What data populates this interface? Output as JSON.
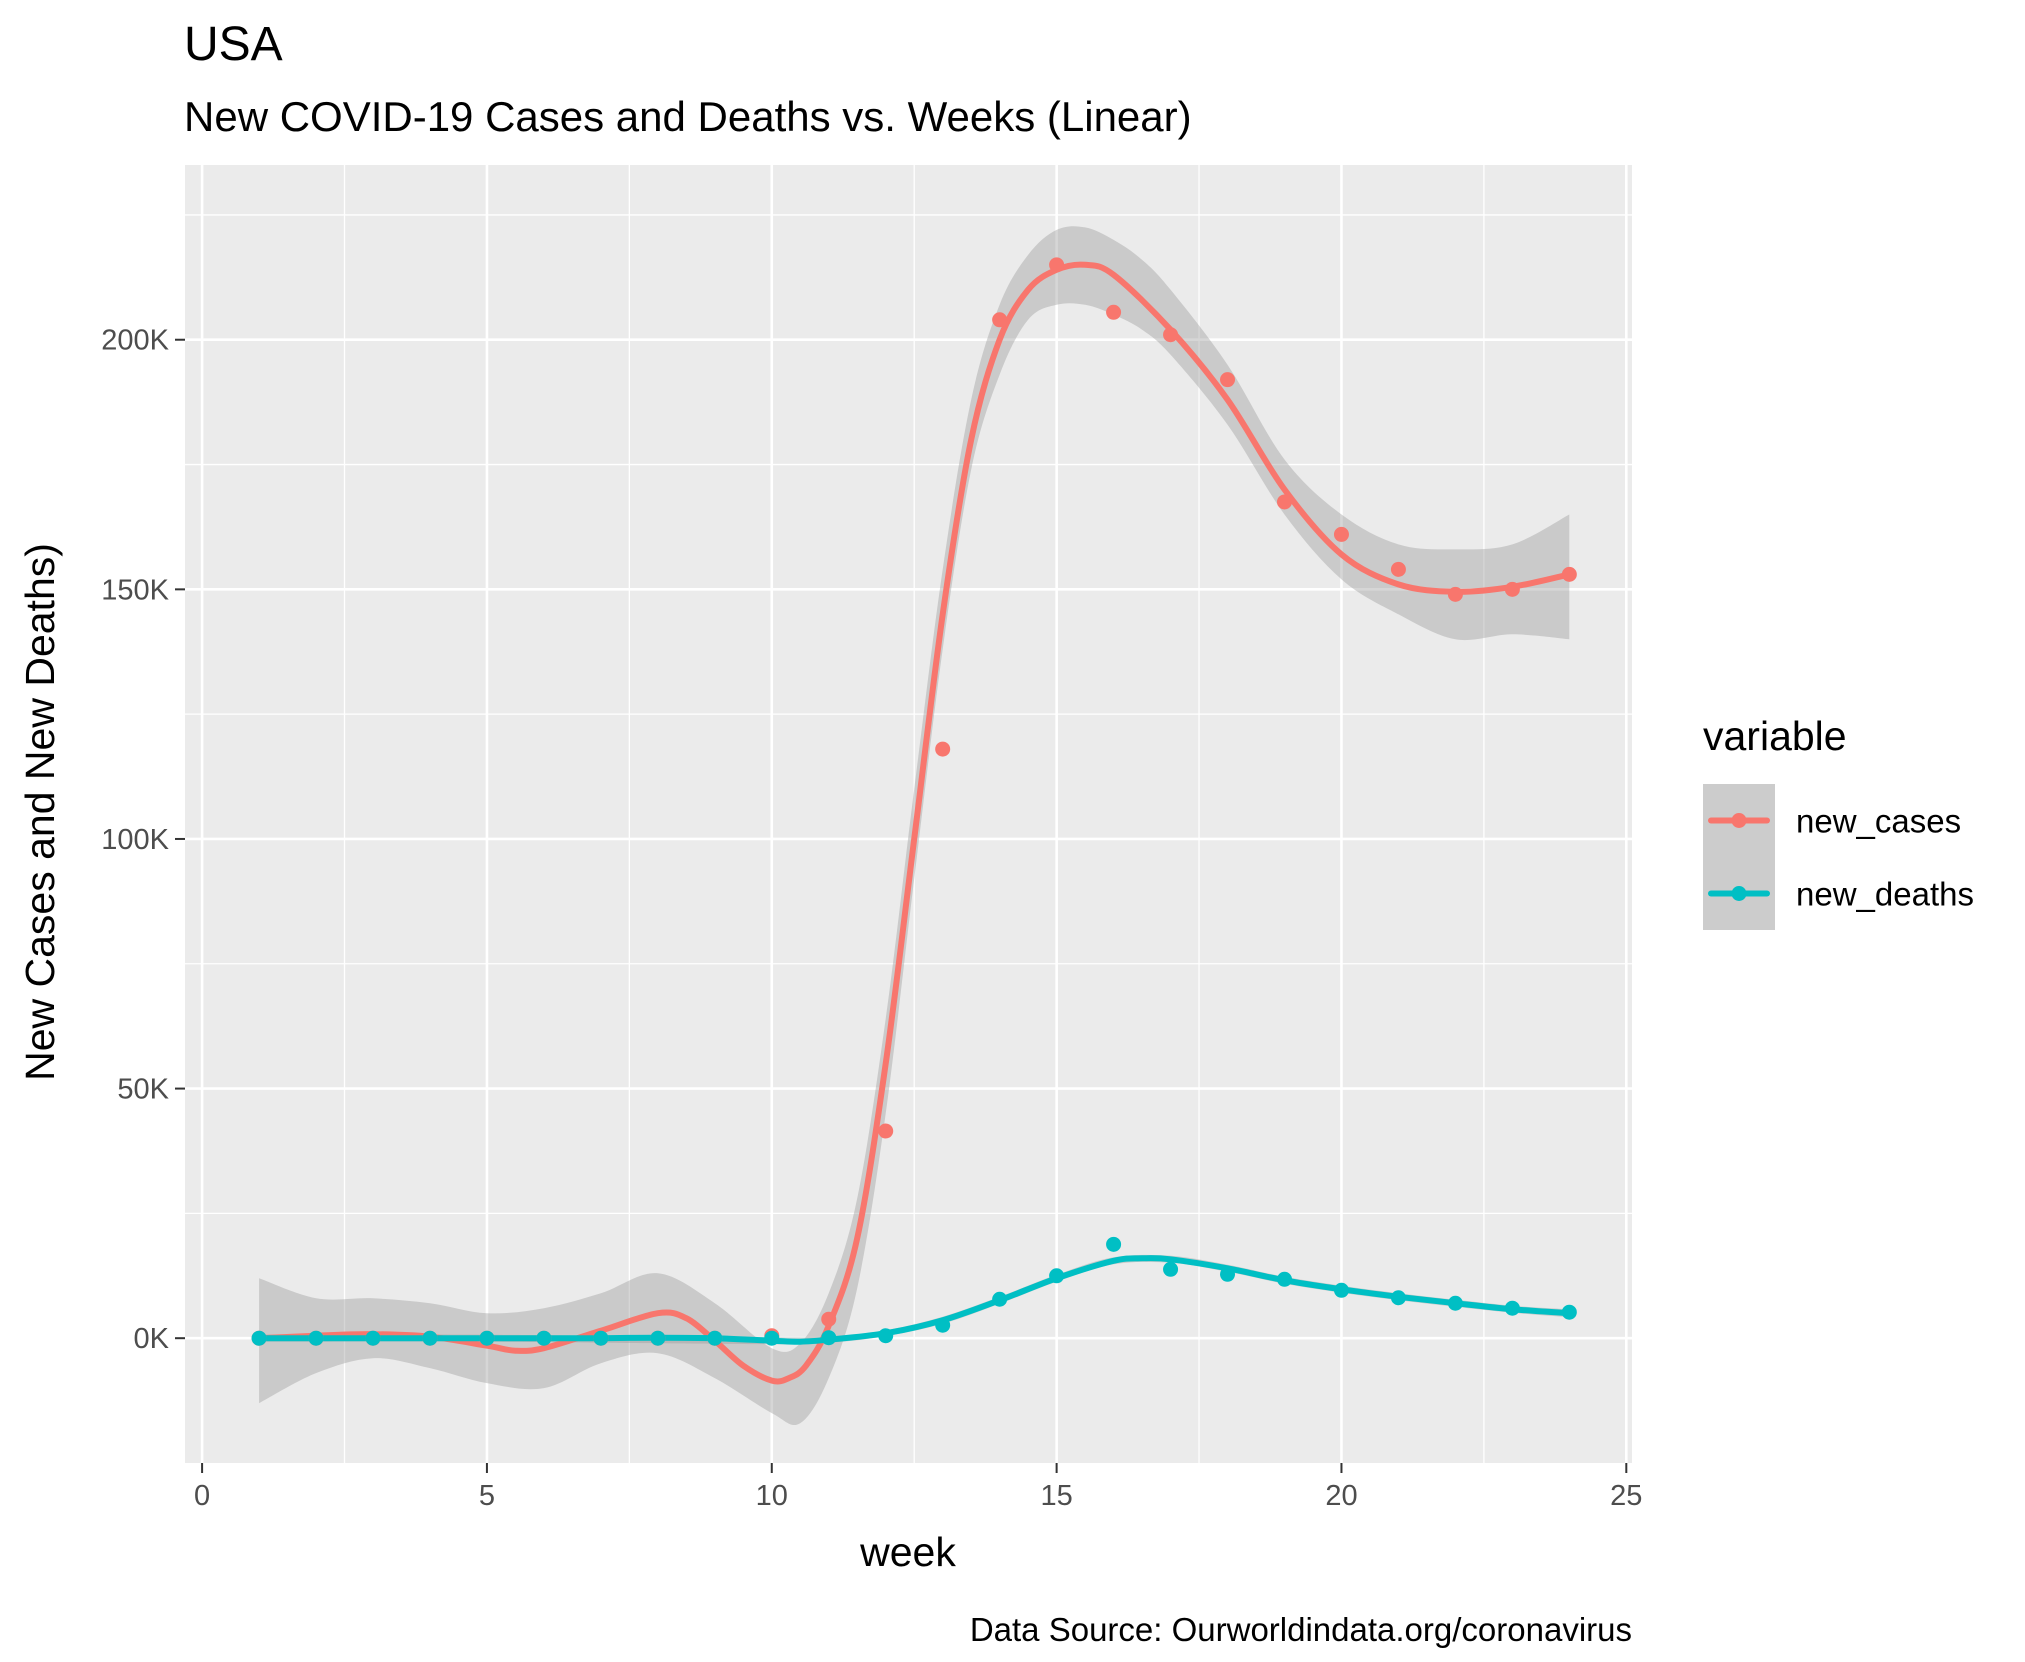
{
  "chart_data": {
    "type": "line",
    "title": "USA",
    "subtitle": "New COVID-19 Cases and Deaths vs. Weeks (Linear)",
    "xlabel": "week",
    "ylabel": "New Cases and New Deaths)",
    "caption": "Data Source: Ourworldindata.org/coronavirus",
    "xlim": [
      -0.3,
      25.1
    ],
    "ylim": [
      -25000,
      235000
    ],
    "x_ticks": [
      0,
      5,
      10,
      15,
      20,
      25
    ],
    "x_tick_labels": [
      "0",
      "5",
      "10",
      "15",
      "20",
      "25"
    ],
    "y_ticks": [
      0,
      50000,
      100000,
      150000,
      200000
    ],
    "y_tick_labels": [
      "0K",
      "50K",
      "100K",
      "150K",
      "200K"
    ],
    "grid": true,
    "legend": {
      "title": "variable",
      "position": "right"
    },
    "series": [
      {
        "name": "new_cases",
        "color": "#F8766D",
        "points": {
          "x": [
            1,
            2,
            3,
            4,
            5,
            6,
            7,
            8,
            9,
            10,
            11,
            12,
            13,
            14,
            15,
            16,
            17,
            18,
            19,
            20,
            21,
            22,
            23,
            24
          ],
          "y": [
            0,
            0,
            0,
            0,
            0,
            0,
            0,
            0,
            0,
            500,
            3800,
            41500,
            118000,
            204000,
            215000,
            205500,
            201000,
            192000,
            167500,
            161000,
            154000,
            149000,
            150000,
            153000
          ]
        },
        "smooth": {
          "x": [
            1,
            2,
            3,
            4,
            5,
            5.5,
            6,
            7,
            8,
            8.5,
            9,
            9.5,
            10,
            10.3,
            10.6,
            11,
            11.5,
            12,
            12.5,
            13,
            13.5,
            14,
            14.5,
            15,
            15.5,
            16,
            17,
            18,
            19,
            20,
            21,
            22,
            23,
            24
          ],
          "y": [
            0,
            500,
            800,
            300,
            -1500,
            -2500,
            -2000,
            1500,
            5000,
            4000,
            -500,
            -5500,
            -8500,
            -8000,
            -5500,
            2500,
            20000,
            55000,
            100000,
            145000,
            180000,
            200000,
            210000,
            214000,
            215000,
            213000,
            202000,
            188000,
            170000,
            157000,
            151000,
            149500,
            150500,
            153000
          ]
        },
        "band": {
          "x": [
            1,
            2,
            3,
            4,
            5,
            6,
            7,
            8,
            9,
            10,
            10.5,
            11,
            11.5,
            12,
            12.5,
            13,
            13.5,
            14,
            14.5,
            15,
            15.5,
            16,
            16.5,
            17,
            18,
            19,
            20,
            21,
            22,
            23,
            24
          ],
          "lower": [
            -13000,
            -7000,
            -4000,
            -6000,
            -9000,
            -10000,
            -5000,
            -3000,
            -8000,
            -15000,
            -17000,
            -8000,
            10000,
            45000,
            92000,
            138000,
            174000,
            193000,
            204000,
            207000,
            207000,
            205000,
            202000,
            197000,
            183000,
            165000,
            152000,
            145000,
            140000,
            141000,
            140000
          ],
          "upper": [
            12000,
            8000,
            8000,
            7000,
            5000,
            6000,
            9000,
            13000,
            7000,
            -2000,
            -1000,
            9000,
            28000,
            64000,
            110000,
            154000,
            188000,
            207000,
            217000,
            222000,
            222500,
            220000,
            216000,
            210000,
            195000,
            176000,
            165000,
            159000,
            158000,
            159000,
            165000
          ]
        }
      },
      {
        "name": "new_deaths",
        "color": "#00BFC4",
        "points": {
          "x": [
            1,
            2,
            3,
            4,
            5,
            6,
            7,
            8,
            9,
            10,
            11,
            12,
            13,
            14,
            15,
            16,
            17,
            18,
            19,
            20,
            21,
            22,
            23,
            24
          ],
          "y": [
            0,
            0,
            0,
            0,
            0,
            0,
            0,
            0,
            0,
            0,
            100,
            500,
            2600,
            7800,
            12500,
            18800,
            13800,
            12800,
            11800,
            9600,
            8100,
            7000,
            6000,
            5200
          ]
        },
        "smooth": {
          "x": [
            1,
            2,
            3,
            4,
            5,
            6,
            7,
            8,
            9,
            10,
            10.5,
            11,
            12,
            13,
            14,
            15,
            16,
            16.5,
            17,
            18,
            19,
            20,
            21,
            22,
            23,
            24
          ],
          "y": [
            0,
            0,
            0,
            0,
            0,
            0,
            0,
            100,
            0,
            -500,
            -700,
            -300,
            1000,
            3600,
            7600,
            12000,
            15500,
            16000,
            15800,
            14000,
            11600,
            9800,
            8300,
            7000,
            5800,
            5000
          ]
        },
        "band": {
          "x": [
            1,
            5,
            10,
            11,
            12,
            13,
            14,
            15,
            16,
            17,
            18,
            19,
            20,
            21,
            22,
            23,
            24
          ],
          "lower": [
            -700,
            -700,
            -1200,
            -900,
            400,
            2900,
            6900,
            11300,
            14800,
            15100,
            13300,
            10900,
            9100,
            7600,
            6300,
            5100,
            4200
          ],
          "upper": [
            700,
            700,
            200,
            300,
            1600,
            4300,
            8300,
            12700,
            16200,
            16500,
            14700,
            12300,
            10500,
            9000,
            7700,
            6500,
            5800
          ]
        }
      }
    ]
  }
}
